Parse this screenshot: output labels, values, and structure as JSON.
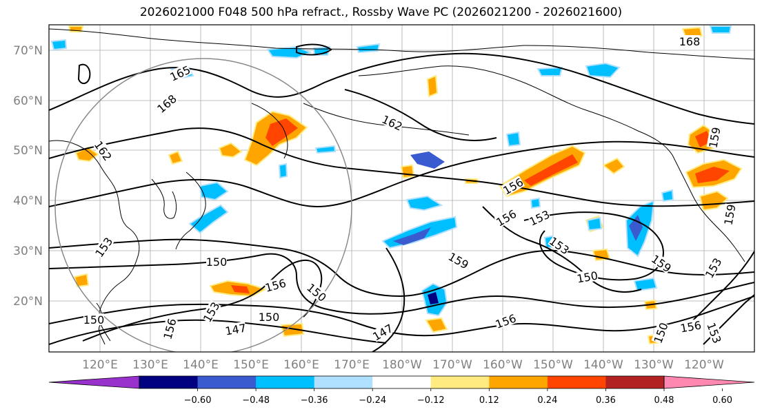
{
  "title": "2026021000 F048 500 hPa refract., Rossby Wave PC (2026021200 - 2026021600)",
  "map": {
    "lat_labels": [
      "70°N",
      "60°N",
      "50°N",
      "40°N",
      "30°N",
      "20°N"
    ],
    "lon_labels": [
      "120°E",
      "130°E",
      "140°E",
      "150°E",
      "160°E",
      "170°E",
      "180°W",
      "170°W",
      "160°W",
      "150°W",
      "140°W",
      "130°W",
      "120°W"
    ],
    "contour_labels": [
      "168",
      "165",
      "168",
      "162",
      "162",
      "156",
      "156",
      "153",
      "153",
      "150",
      "150",
      "159",
      "156",
      "150",
      "150",
      "147",
      "153",
      "156",
      "147",
      "159",
      "153",
      "150",
      "159",
      "153",
      "156",
      "150",
      "153",
      "156",
      "159"
    ]
  },
  "colorbar": {
    "colors": [
      "#9932cc",
      "#000080",
      "#3a5bd0",
      "#00bfff",
      "#b0e0ff",
      "#ffffff",
      "#ffeb80",
      "#ffa500",
      "#ff4500",
      "#b22222",
      "#ff88b0"
    ],
    "tick_labels": [
      "−0.60",
      "−0.48",
      "−0.36",
      "−0.24",
      "−0.12",
      "0.12",
      "0.24",
      "0.36",
      "0.48",
      "0.60"
    ]
  }
}
